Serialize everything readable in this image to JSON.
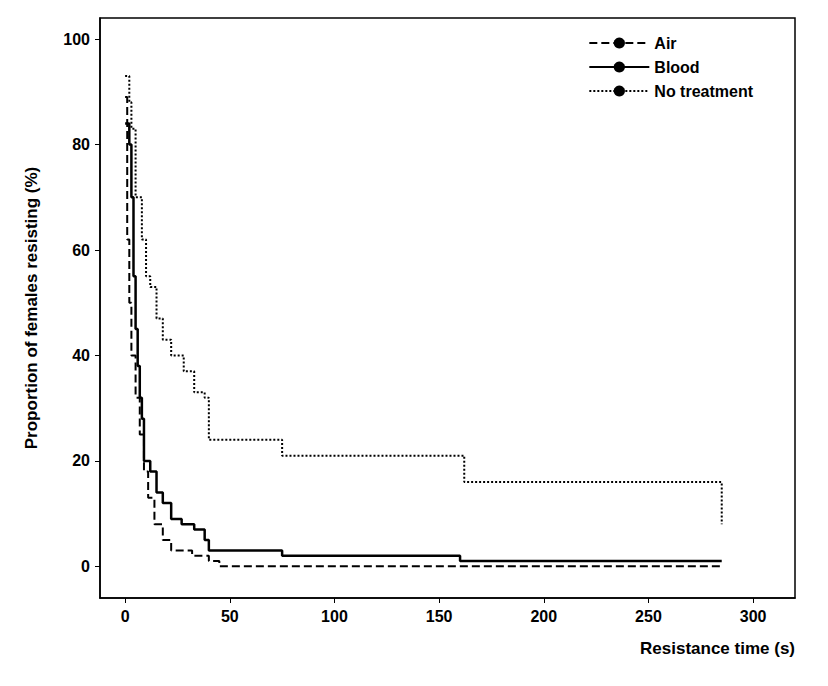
{
  "chart_data": {
    "type": "step",
    "x_label": "Resistance time (s)",
    "y_label": "Proportion of females resisting (%)",
    "xlim": [
      -12,
      320
    ],
    "xticks": [
      0,
      50,
      100,
      150,
      200,
      250,
      300
    ],
    "ylim": [
      -6,
      104
    ],
    "yticks": [
      0,
      20,
      40,
      60,
      80,
      100
    ],
    "grid": false,
    "legend": "top-right",
    "series": [
      {
        "name": "Air",
        "color": "#000000",
        "line_style": "dashed",
        "x": [
          0,
          1,
          2,
          3,
          5,
          7,
          9,
          11,
          14,
          18,
          22,
          30,
          32,
          40,
          45,
          285
        ],
        "values": [
          89,
          62,
          50,
          40,
          32,
          25,
          18,
          13,
          8,
          5,
          3,
          3,
          2,
          1,
          0,
          0
        ]
      },
      {
        "name": "Blood",
        "color": "#000000",
        "line_style": "solid",
        "x": [
          0,
          2,
          3,
          4,
          5,
          6,
          7,
          8,
          9,
          12,
          15,
          18,
          22,
          27,
          33,
          38,
          40,
          75,
          160,
          285
        ],
        "values": [
          84,
          80,
          70,
          55,
          45,
          38,
          32,
          28,
          20,
          18,
          14,
          12,
          9,
          8,
          7,
          5,
          3,
          2,
          1,
          1
        ]
      },
      {
        "name": "No treatment",
        "color": "#000000",
        "line_style": "dotted",
        "x": [
          0,
          2,
          3,
          5,
          8,
          10,
          12,
          15,
          18,
          22,
          28,
          33,
          38,
          40,
          73,
          75,
          160,
          162,
          283,
          285
        ],
        "values": [
          93,
          88,
          83,
          70,
          62,
          55,
          53,
          47,
          43,
          40,
          37,
          33,
          32,
          24,
          24,
          21,
          21,
          16,
          16,
          8
        ]
      }
    ]
  }
}
